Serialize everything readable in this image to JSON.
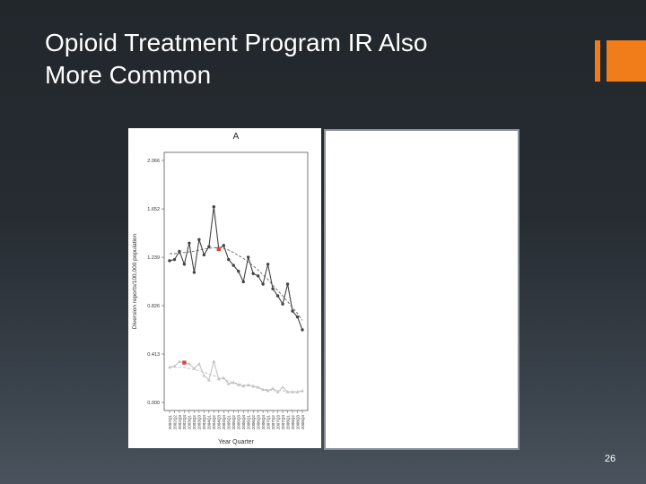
{
  "slide": {
    "title_lines": [
      "Opioid Treatment Program IR Also",
      "More Common"
    ],
    "number": "26",
    "accent_color": "#f07d1a"
  },
  "chart_data": {
    "type": "line",
    "title": "A",
    "xlabel": "Year Quarter",
    "ylabel": "Diversion reports/100,000 population",
    "ylim": [
      0.0,
      2.066
    ],
    "yticks": [
      "0.000",
      "0.413",
      "0.826",
      "1.239",
      "1.652",
      "2.066"
    ],
    "grid": false,
    "x": [
      "2002Q1",
      "2002Q2",
      "2002Q3",
      "2002Q4",
      "2003Q1",
      "2003Q2",
      "2003Q3",
      "2003Q4",
      "2004Q1",
      "2004Q2",
      "2004Q3",
      "2004Q4",
      "2005Q1",
      "2005Q2",
      "2005Q3",
      "2005Q4",
      "2006Q1",
      "2006Q2",
      "2006Q3",
      "2006Q4",
      "2007Q1",
      "2007Q2",
      "2007Q3",
      "2007Q4",
      "2008Q1",
      "2008Q2",
      "2008Q3",
      "2008Q4"
    ],
    "series": [
      {
        "color": "#444444",
        "values": [
          1.21,
          1.22,
          1.29,
          1.18,
          1.36,
          1.11,
          1.39,
          1.26,
          1.33,
          1.67,
          1.31,
          1.34,
          1.22,
          1.17,
          1.12,
          1.03,
          1.24,
          1.1,
          1.08,
          1.01,
          1.18,
          0.97,
          0.91,
          0.84,
          1.01,
          0.78,
          0.73,
          0.62
        ],
        "trend": [
          1.27,
          1.27,
          1.275,
          1.28,
          1.285,
          1.29,
          1.3,
          1.31,
          1.315,
          1.32,
          1.32,
          1.315,
          1.3,
          1.28,
          1.255,
          1.23,
          1.2,
          1.165,
          1.13,
          1.09,
          1.05,
          1.0,
          0.955,
          0.91,
          0.86,
          0.81,
          0.76,
          0.7
        ],
        "marked_index": 10,
        "marker_color": "#d9473a"
      },
      {
        "color": "#c4c4c4",
        "values": [
          0.3,
          0.31,
          0.35,
          0.34,
          0.33,
          0.29,
          0.33,
          0.23,
          0.19,
          0.35,
          0.2,
          0.21,
          0.16,
          0.17,
          0.15,
          0.14,
          0.15,
          0.14,
          0.13,
          0.11,
          0.1,
          0.12,
          0.09,
          0.13,
          0.09,
          0.09,
          0.09,
          0.1
        ],
        "trend": [
          0.3,
          0.3,
          0.3,
          0.3,
          0.29,
          0.28,
          0.27,
          0.26,
          0.24,
          0.23,
          0.21,
          0.2,
          0.18,
          0.17,
          0.16,
          0.15,
          0.14,
          0.13,
          0.12,
          0.11,
          0.11,
          0.1,
          0.1,
          0.1,
          0.09,
          0.09,
          0.09,
          0.09
        ],
        "marked_index": 3,
        "marker_color": "#d9473a"
      }
    ]
  }
}
